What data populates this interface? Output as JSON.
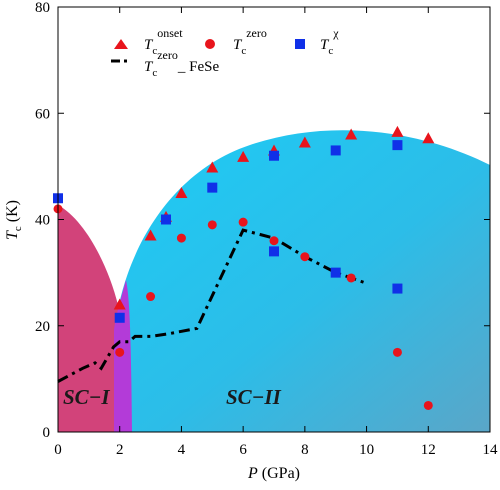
{
  "chart_data": {
    "type": "scatter",
    "xlabel_var": "P",
    "xlabel_unit": " (GPa)",
    "ylabel_var": "T",
    "ylabel_sub": "c",
    "ylabel_unit": " (K)",
    "xlim": [
      0,
      14
    ],
    "ylim": [
      0,
      80
    ],
    "xticks": [
      0,
      2,
      4,
      6,
      8,
      10,
      12,
      14
    ],
    "yticks": [
      0,
      20,
      40,
      60,
      80
    ],
    "legend_placement": "top-left",
    "grid": false,
    "regions": [
      {
        "name": "SC−I",
        "color": "#d2437a"
      },
      {
        "name": "SC−II",
        "color": "#23c4ee"
      }
    ],
    "series": [
      {
        "name_var": "T",
        "name_sub": "c",
        "name_sup": "onset",
        "name_suffix": "",
        "marker": "triangle",
        "color": "#e8141c",
        "points": [
          [
            2,
            24
          ],
          [
            3,
            37
          ],
          [
            3.5,
            40.5
          ],
          [
            4,
            45
          ],
          [
            5,
            49.8
          ],
          [
            6,
            51.8
          ],
          [
            7,
            53
          ],
          [
            8,
            54.5
          ],
          [
            9.5,
            56
          ],
          [
            11,
            56.5
          ],
          [
            12,
            55.3
          ]
        ]
      },
      {
        "name_var": "T",
        "name_sub": "c",
        "name_sup": "zero",
        "name_suffix": "",
        "marker": "circle",
        "color": "#e8141c",
        "points": [
          [
            0,
            42
          ],
          [
            2,
            15
          ],
          [
            3,
            25.5
          ],
          [
            4,
            36.5
          ],
          [
            5,
            39
          ],
          [
            6,
            39.5
          ],
          [
            7,
            36
          ],
          [
            8,
            33
          ],
          [
            9.5,
            29
          ],
          [
            11,
            15
          ],
          [
            12,
            5
          ]
        ]
      },
      {
        "name_var": "T",
        "name_sub": "c",
        "name_sup": "χ",
        "name_suffix": "",
        "marker": "square",
        "color": "#1030e8",
        "points": [
          [
            0,
            44
          ],
          [
            2,
            21.5
          ],
          [
            3.5,
            40
          ],
          [
            5,
            46
          ],
          [
            7,
            52
          ],
          [
            7,
            34
          ],
          [
            9,
            53
          ],
          [
            9,
            30
          ],
          [
            11,
            54
          ],
          [
            11,
            27
          ]
        ]
      },
      {
        "name_var": "T",
        "name_sub": "c",
        "name_sup": "zero",
        "name_suffix": "_ FeSe",
        "marker": "dashdot",
        "color": "#000000",
        "points": [
          [
            0,
            9.5
          ],
          [
            0.8,
            12
          ],
          [
            1.2,
            13
          ],
          [
            1.4,
            12
          ],
          [
            1.8,
            16
          ],
          [
            2,
            17
          ],
          [
            2.3,
            17
          ],
          [
            2.5,
            18
          ],
          [
            3,
            18
          ],
          [
            3.6,
            18.5
          ],
          [
            4.5,
            19.5
          ],
          [
            6,
            38
          ],
          [
            7,
            36.5
          ],
          [
            8,
            33
          ],
          [
            9,
            30
          ],
          [
            10,
            28
          ]
        ]
      }
    ]
  }
}
